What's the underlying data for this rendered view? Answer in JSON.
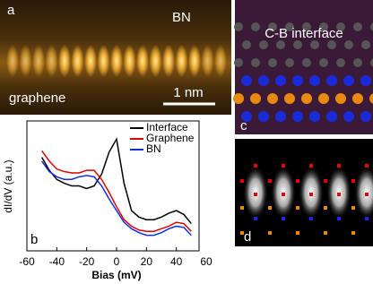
{
  "panels": {
    "a": {
      "label": "a",
      "top_text": "BN",
      "bottom_text": "graphene",
      "scale_bar": "1 nm"
    },
    "c": {
      "label": "c",
      "title": "C-B interface"
    },
    "d": {
      "label": "d"
    }
  },
  "chart_data": {
    "type": "line",
    "panel_label": "b",
    "x_label": "Bias (mV)",
    "y_label": "dI/dV (a.u.)",
    "x": [
      -50,
      -45,
      -40,
      -35,
      -30,
      -25,
      -20,
      -15,
      -10,
      -5,
      0,
      5,
      10,
      15,
      20,
      25,
      30,
      35,
      40,
      45,
      50
    ],
    "series": [
      {
        "name": "Interface",
        "color": "#000000",
        "values": [
          7.2,
          6.2,
          5.5,
          5.2,
          5.0,
          5.0,
          4.8,
          5.0,
          5.9,
          7.6,
          8.6,
          5.2,
          3.1,
          2.6,
          2.4,
          2.4,
          2.6,
          2.9,
          3.1,
          2.8,
          2.1
        ]
      },
      {
        "name": "Graphene",
        "color": "#e00000",
        "values": [
          7.7,
          6.9,
          6.3,
          6.1,
          6.0,
          6.0,
          6.2,
          6.2,
          5.5,
          4.5,
          3.4,
          2.4,
          1.9,
          1.6,
          1.5,
          1.5,
          1.7,
          1.9,
          2.2,
          2.1,
          1.5
        ]
      },
      {
        "name": "BN",
        "color": "#1030e0",
        "values": [
          6.9,
          6.1,
          5.7,
          5.5,
          5.5,
          5.7,
          5.8,
          5.7,
          5.0,
          4.0,
          3.1,
          2.2,
          1.7,
          1.4,
          1.2,
          1.2,
          1.4,
          1.7,
          1.9,
          1.8,
          1.2
        ]
      }
    ],
    "xlim": [
      -60,
      60
    ],
    "xticks": [
      -60,
      -40,
      -20,
      0,
      20,
      40,
      60
    ],
    "ylim": [
      0,
      10
    ]
  }
}
